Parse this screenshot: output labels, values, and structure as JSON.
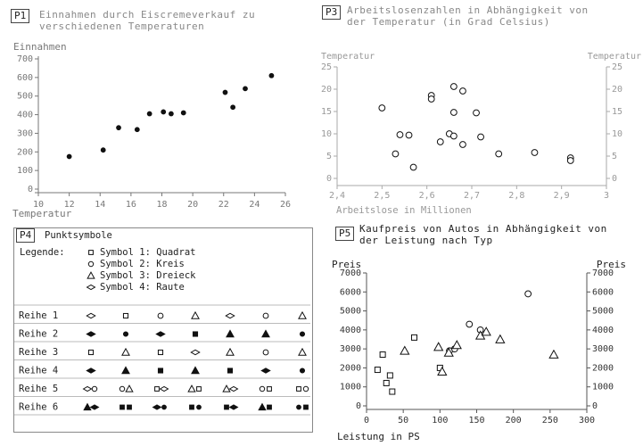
{
  "panels": {
    "p1": {
      "tag": "P1",
      "title_line1": "Einnahmen durch Eiscremeverkauf zu",
      "title_line2": "verschiedenen Temperaturen"
    },
    "p3": {
      "tag": "P3",
      "title_line1": "Arbeitslosenzahlen in Abhängigkeit von",
      "title_line2": "der Temperatur (in Grad Celsius)"
    },
    "p4": {
      "tag": "P4",
      "title": "Punktsymbole",
      "legend_label": "Legende:",
      "legend": [
        {
          "symbol": "square",
          "text": "Symbol 1: Quadrat"
        },
        {
          "symbol": "circle",
          "text": "Symbol 2: Kreis"
        },
        {
          "symbol": "triangle",
          "text": "Symbol 3: Dreieck"
        },
        {
          "symbol": "diamond",
          "text": "Symbol 4: Raute"
        }
      ],
      "rows": [
        {
          "label": "Reihe 1",
          "cells": [
            [
              "diamond-o"
            ],
            [
              "square-o"
            ],
            [
              "circle-o"
            ],
            [
              "triangle-o"
            ],
            [
              "diamond-o"
            ],
            [
              "circle-o"
            ],
            [
              "triangle-o"
            ]
          ]
        },
        {
          "label": "Reihe 2",
          "cells": [
            [
              "diamond-f"
            ],
            [
              "circle-f"
            ],
            [
              "diamond-f"
            ],
            [
              "square-f"
            ],
            [
              "triangle-f"
            ],
            [
              "triangle-f"
            ],
            [
              "circle-f"
            ]
          ]
        },
        {
          "label": "Reihe 3",
          "cells": [
            [
              "square-o"
            ],
            [
              "triangle-o"
            ],
            [
              "square-o"
            ],
            [
              "diamond-o"
            ],
            [
              "triangle-o"
            ],
            [
              "circle-o"
            ],
            [
              "triangle-o"
            ]
          ]
        },
        {
          "label": "Reihe 4",
          "cells": [
            [
              "diamond-f"
            ],
            [
              "triangle-f"
            ],
            [
              "square-f"
            ],
            [
              "triangle-f"
            ],
            [
              "square-f"
            ],
            [
              "diamond-f"
            ],
            [
              "circle-f"
            ]
          ]
        },
        {
          "label": "Reihe 5",
          "cells": [
            [
              "diamond-o",
              "circle-o"
            ],
            [
              "circle-o",
              "triangle-o"
            ],
            [
              "square-o",
              "diamond-o"
            ],
            [
              "triangle-o",
              "square-o"
            ],
            [
              "triangle-o",
              "diamond-o"
            ],
            [
              "circle-o",
              "square-o"
            ],
            [
              "square-o",
              "circle-o"
            ]
          ]
        },
        {
          "label": "Reihe 6",
          "cells": [
            [
              "triangle-f",
              "diamond-f"
            ],
            [
              "square-f",
              "square-f"
            ],
            [
              "diamond-f",
              "circle-f"
            ],
            [
              "square-f",
              "circle-f"
            ],
            [
              "square-f",
              "diamond-f"
            ],
            [
              "triangle-f",
              "square-f"
            ],
            [
              "circle-f",
              "square-f"
            ]
          ]
        }
      ]
    },
    "p5": {
      "tag": "P5",
      "title_line1": "Kaufpreis von Autos in Abhängigkeit von",
      "title_line2": "der Leistung nach Typ"
    }
  },
  "chart_data": [
    {
      "id": "p1",
      "type": "scatter",
      "title": "Einnahmen durch Eiscremeverkauf zu verschiedenen Temperaturen",
      "xlabel": "Temperatur",
      "ylabel": "Einnahmen",
      "xlim": [
        10,
        26
      ],
      "ylim": [
        0,
        700
      ],
      "xticks": [
        "10",
        "12",
        "14",
        "16",
        "18",
        "20",
        "22",
        "24",
        "26"
      ],
      "yticks": [
        "0",
        "100",
        "200",
        "300",
        "400",
        "500",
        "600",
        "700"
      ],
      "grid": false,
      "series": [
        {
          "marker": "circle-filled",
          "x": [
            12.0,
            14.2,
            15.2,
            16.4,
            17.2,
            18.1,
            18.6,
            19.4,
            22.1,
            22.6,
            23.4,
            25.1
          ],
          "y": [
            175,
            210,
            330,
            320,
            405,
            415,
            405,
            410,
            520,
            440,
            540,
            610
          ]
        }
      ]
    },
    {
      "id": "p3",
      "type": "scatter",
      "title": "Arbeitslosenzahlen in Abhängigkeit von der Temperatur (in Grad Celsius)",
      "xlabel": "Arbeitslose in Millionen",
      "ylabel_left": "Temperatur",
      "ylabel_right": "Temperatur",
      "xlim": [
        2.4,
        3.0
      ],
      "ylim": [
        0,
        25
      ],
      "xticks": [
        "2,4",
        "2,5",
        "2,6",
        "2,7",
        "2,8",
        "2,9",
        "3"
      ],
      "yticks": [
        "0",
        "5",
        "10",
        "15",
        "20",
        "25"
      ],
      "grid": false,
      "series": [
        {
          "marker": "circle-open",
          "x": [
            2.5,
            2.53,
            2.54,
            2.56,
            2.57,
            2.61,
            2.61,
            2.63,
            2.65,
            2.66,
            2.66,
            2.66,
            2.68,
            2.68,
            2.71,
            2.72,
            2.76,
            2.84,
            2.92,
            2.92
          ],
          "y": [
            15.8,
            5.5,
            9.8,
            9.7,
            2.5,
            18.6,
            17.8,
            8.2,
            10.0,
            9.5,
            20.6,
            14.8,
            7.6,
            19.6,
            14.7,
            9.3,
            5.5,
            5.8,
            4.6,
            4.0
          ]
        }
      ]
    },
    {
      "id": "p5",
      "type": "scatter",
      "title": "Kaufpreis von Autos in Abhängigkeit von der Leistung nach Typ",
      "xlabel": "Leistung in PS",
      "ylabel_left": "Preis",
      "ylabel_right": "Preis",
      "xlim": [
        0,
        300
      ],
      "ylim": [
        0,
        7000
      ],
      "xticks": [
        "0",
        "50",
        "100",
        "150",
        "200",
        "250",
        "300"
      ],
      "yticks": [
        "0",
        "1000",
        "2000",
        "3000",
        "4000",
        "5000",
        "6000",
        "7000"
      ],
      "grid": false,
      "series": [
        {
          "marker": "square-open",
          "x": [
            15,
            22,
            27,
            32,
            35,
            65,
            100
          ],
          "y": [
            1900,
            2700,
            1200,
            1600,
            750,
            3600,
            2000
          ]
        },
        {
          "marker": "circle-open",
          "x": [
            113,
            120,
            140,
            155,
            220
          ],
          "y": [
            2900,
            3000,
            4300,
            4000,
            5900
          ]
        },
        {
          "marker": "triangle-open",
          "x": [
            52,
            98,
            103,
            112,
            123,
            155,
            163,
            182,
            255
          ],
          "y": [
            2900,
            3100,
            1800,
            2800,
            3200,
            3700,
            3900,
            3500,
            2700
          ]
        }
      ]
    }
  ]
}
